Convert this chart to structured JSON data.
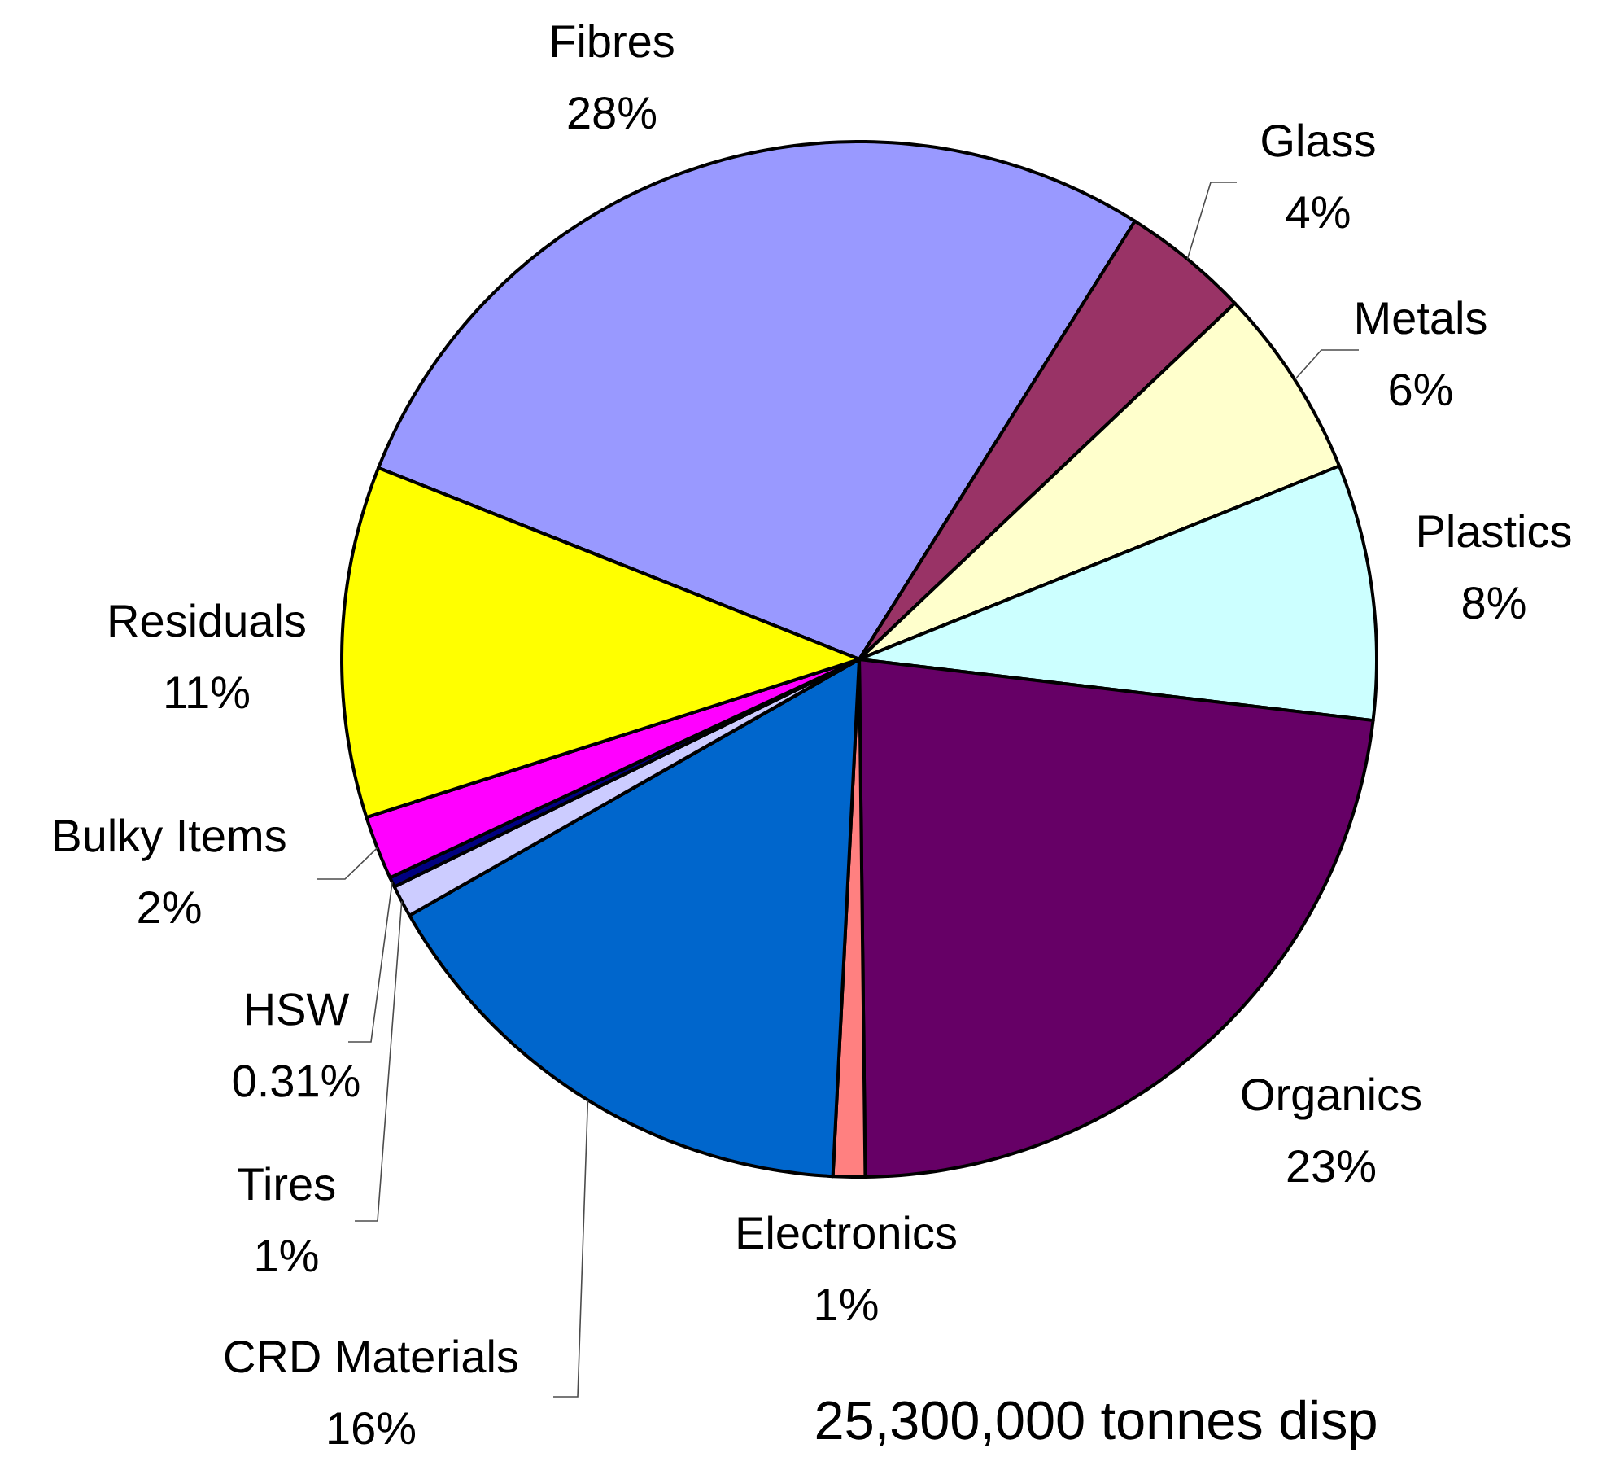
{
  "chart_data": {
    "type": "pie",
    "categories": [
      "Fibres",
      "Glass",
      "Metals",
      "Plastics",
      "Organics",
      "Electronics",
      "CRD Materials",
      "Tires",
      "HSW",
      "Bulky Items",
      "Residuals"
    ],
    "values": [
      28,
      4,
      6,
      8,
      23,
      1,
      16,
      1,
      0.31,
      2,
      11
    ],
    "value_labels": [
      "28%",
      "4%",
      "6%",
      "8%",
      "23%",
      "1%",
      "16%",
      "1%",
      "0.31%",
      "2%",
      "11%"
    ],
    "colors": [
      "#9999ff",
      "#993366",
      "#ffffcc",
      "#ccffff",
      "#660066",
      "#ff8080",
      "#0066cc",
      "#ccccff",
      "#000080",
      "#ff00ff",
      "#ffff00"
    ],
    "annotations": [
      "25,300,000 tonnes disp"
    ]
  }
}
